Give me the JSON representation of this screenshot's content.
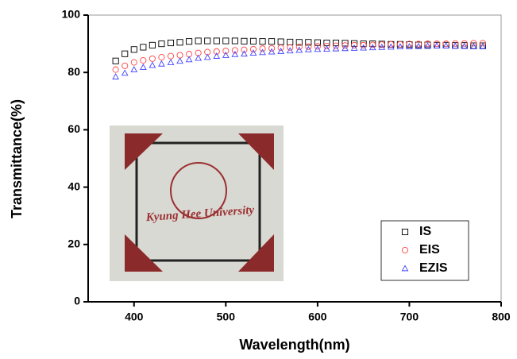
{
  "chart_data": {
    "type": "scatter",
    "x_label": "Wavelength(nm)",
    "y_label": "Transmittance(%)",
    "annotations": [
      "Kyung Hee University"
    ],
    "x": [
      380,
      390,
      400,
      410,
      420,
      430,
      440,
      450,
      460,
      470,
      480,
      490,
      500,
      510,
      520,
      530,
      540,
      550,
      560,
      570,
      580,
      590,
      600,
      610,
      620,
      630,
      640,
      650,
      660,
      670,
      680,
      690,
      700,
      710,
      720,
      730,
      740,
      750,
      760,
      770,
      780
    ],
    "series": [
      {
        "name": "IS",
        "color": "#000000",
        "marker": "square",
        "values": [
          84,
          86.5,
          88,
          88.8,
          89.5,
          90,
          90.3,
          90.5,
          90.8,
          91,
          91,
          91,
          91,
          91,
          90.9,
          90.9,
          90.8,
          90.8,
          90.7,
          90.6,
          90.5,
          90.5,
          90.4,
          90.3,
          90.3,
          90.2,
          90.1,
          90,
          90,
          89.9,
          89.8,
          89.8,
          89.7,
          89.6,
          89.6,
          89.5,
          89.5,
          89.4,
          89.4,
          89.3,
          89.3
        ]
      },
      {
        "name": "EIS",
        "color": "#ff4444",
        "marker": "circle",
        "values": [
          81,
          82.3,
          83.5,
          84.2,
          84.8,
          85.3,
          85.7,
          86,
          86.4,
          86.8,
          87.1,
          87.3,
          87.5,
          87.7,
          87.9,
          88.1,
          88.3,
          88.4,
          88.6,
          88.7,
          88.9,
          89,
          89.1,
          89.2,
          89.3,
          89.4,
          89.5,
          89.5,
          89.6,
          89.7,
          89.8,
          89.8,
          89.9,
          89.9,
          90,
          90,
          90,
          90.1,
          90.1,
          90.2,
          90.2
        ]
      },
      {
        "name": "EZIS",
        "color": "#4444ff",
        "marker": "triangle",
        "values": [
          78.5,
          79.8,
          81,
          81.8,
          82.5,
          83,
          83.5,
          84,
          84.5,
          85,
          85.3,
          85.7,
          86,
          86.3,
          86.5,
          86.8,
          87,
          87.2,
          87.4,
          87.6,
          87.8,
          88,
          88.1,
          88.2,
          88.3,
          88.4,
          88.5,
          88.6,
          88.7,
          88.8,
          88.9,
          89,
          89,
          89.1,
          89.2,
          89.3,
          89.3,
          89.2,
          89.1,
          89,
          89
        ]
      }
    ],
    "xlim": [
      350,
      800
    ],
    "xticks": [
      400,
      500,
      600,
      700,
      800
    ],
    "ylim": [
      0,
      100
    ],
    "yticks": [
      0,
      20,
      40,
      60,
      80,
      100
    ],
    "legend": "lower right"
  }
}
